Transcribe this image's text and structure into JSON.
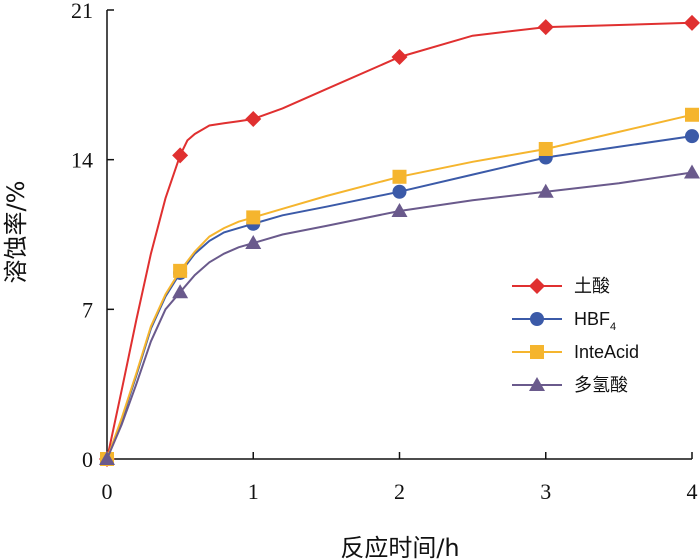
{
  "chart_data": {
    "type": "line",
    "title": "",
    "xlabel": "反应时间/h",
    "ylabel": "溶蚀率/%",
    "xlim": [
      0,
      4
    ],
    "ylim": [
      0,
      21
    ],
    "xticks": [
      "0",
      "1",
      "2",
      "3",
      "4"
    ],
    "yticks": [
      "0",
      "7",
      "14",
      "21"
    ],
    "legend_position": "right-middle",
    "series": [
      {
        "name": "土酸",
        "color": "#e03030",
        "marker": "diamond",
        "curve": [
          [
            0,
            0
          ],
          [
            0.1,
            3.2
          ],
          [
            0.2,
            6.5
          ],
          [
            0.3,
            9.6
          ],
          [
            0.4,
            12.2
          ],
          [
            0.5,
            14.2
          ],
          [
            0.55,
            14.9
          ],
          [
            0.6,
            15.2
          ],
          [
            0.7,
            15.6
          ],
          [
            0.8,
            15.7
          ],
          [
            0.9,
            15.8
          ],
          [
            1.0,
            15.9
          ],
          [
            1.2,
            16.4
          ],
          [
            1.5,
            17.3
          ],
          [
            2.0,
            18.8
          ],
          [
            2.5,
            19.8
          ],
          [
            3.0,
            20.2
          ],
          [
            3.5,
            20.3
          ],
          [
            4.0,
            20.4
          ]
        ],
        "points": [
          [
            0,
            0
          ],
          [
            0.5,
            14.2
          ],
          [
            1,
            15.9
          ],
          [
            2,
            18.8
          ],
          [
            3,
            20.2
          ],
          [
            4,
            20.4
          ]
        ]
      },
      {
        "name": "HBF",
        "name_sub": "4",
        "color": "#3b5aa8",
        "marker": "circle",
        "curve": [
          [
            0,
            0
          ],
          [
            0.1,
            1.8
          ],
          [
            0.2,
            3.9
          ],
          [
            0.3,
            6.1
          ],
          [
            0.4,
            7.6
          ],
          [
            0.5,
            8.7
          ],
          [
            0.6,
            9.6
          ],
          [
            0.7,
            10.2
          ],
          [
            0.8,
            10.6
          ],
          [
            0.9,
            10.8
          ],
          [
            1.0,
            11.0
          ],
          [
            1.2,
            11.4
          ],
          [
            1.5,
            11.8
          ],
          [
            2.0,
            12.5
          ],
          [
            2.5,
            13.3
          ],
          [
            3.0,
            14.1
          ],
          [
            3.5,
            14.6
          ],
          [
            4.0,
            15.1
          ]
        ],
        "points": [
          [
            0,
            0
          ],
          [
            0.5,
            8.7
          ],
          [
            1,
            11.0
          ],
          [
            2,
            12.5
          ],
          [
            3,
            14.1
          ],
          [
            4,
            15.1
          ]
        ]
      },
      {
        "name": "InteAcid",
        "color": "#f5b52e",
        "marker": "square",
        "curve": [
          [
            0,
            0
          ],
          [
            0.1,
            1.9
          ],
          [
            0.2,
            4.0
          ],
          [
            0.3,
            6.2
          ],
          [
            0.4,
            7.7
          ],
          [
            0.5,
            8.8
          ],
          [
            0.6,
            9.7
          ],
          [
            0.7,
            10.4
          ],
          [
            0.8,
            10.8
          ],
          [
            0.9,
            11.1
          ],
          [
            1.0,
            11.3
          ],
          [
            1.2,
            11.7
          ],
          [
            1.5,
            12.3
          ],
          [
            2.0,
            13.2
          ],
          [
            2.5,
            13.9
          ],
          [
            3.0,
            14.5
          ],
          [
            3.5,
            15.3
          ],
          [
            4.0,
            16.1
          ]
        ],
        "points": [
          [
            0,
            0
          ],
          [
            0.5,
            8.8
          ],
          [
            1,
            11.3
          ],
          [
            2,
            13.2
          ],
          [
            3,
            14.5
          ],
          [
            4,
            16.1
          ]
        ]
      },
      {
        "name": "多氢酸",
        "color": "#6a5a8c",
        "marker": "triangle",
        "curve": [
          [
            0,
            0
          ],
          [
            0.1,
            1.6
          ],
          [
            0.2,
            3.5
          ],
          [
            0.3,
            5.5
          ],
          [
            0.4,
            7.0
          ],
          [
            0.5,
            7.8
          ],
          [
            0.6,
            8.6
          ],
          [
            0.7,
            9.2
          ],
          [
            0.8,
            9.6
          ],
          [
            0.9,
            9.9
          ],
          [
            1.0,
            10.1
          ],
          [
            1.2,
            10.5
          ],
          [
            1.5,
            10.9
          ],
          [
            2.0,
            11.6
          ],
          [
            2.5,
            12.1
          ],
          [
            3.0,
            12.5
          ],
          [
            3.5,
            12.9
          ],
          [
            4.0,
            13.4
          ]
        ],
        "points": [
          [
            0,
            0
          ],
          [
            0.5,
            7.8
          ],
          [
            1,
            10.1
          ],
          [
            2,
            11.6
          ],
          [
            3,
            12.5
          ],
          [
            4,
            13.4
          ]
        ]
      }
    ]
  }
}
